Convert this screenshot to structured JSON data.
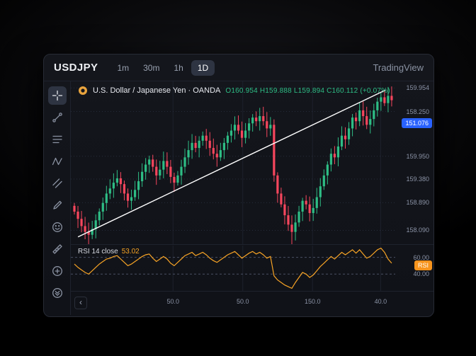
{
  "header": {
    "title": "USDJPY",
    "timeframes": [
      {
        "label": "1m",
        "active": false
      },
      {
        "label": "30m",
        "active": false
      },
      {
        "label": "1h",
        "active": false
      },
      {
        "label": "1D",
        "active": true
      }
    ],
    "brand": "TradingView"
  },
  "toolbar": {
    "tools": [
      "crosshair",
      "trend-line",
      "horizontal-lines",
      "xabcd-pattern",
      "parallel-channel",
      "brush",
      "emoji",
      "measure",
      "zoom-in",
      "more-tools"
    ],
    "active_tool": "crosshair"
  },
  "symbol": {
    "name": "U.S. Dollar / Japanese Yen · OANDA",
    "ohlc": "O160.954  H159.888  L159.894  C160.112  (+0.07%)"
  },
  "price_axis": {
    "labels": [
      {
        "text": "159.954",
        "f": 0.04
      },
      {
        "text": "158.250",
        "f": 0.185
      },
      {
        "text": "159.950",
        "f": 0.46
      },
      {
        "text": "159.380",
        "f": 0.6
      },
      {
        "text": "158.890",
        "f": 0.745
      },
      {
        "text": "158.090",
        "f": 0.915
      }
    ],
    "badge": {
      "text": "151.076",
      "f": 0.255
    }
  },
  "rsi_panel": {
    "title": "RSI 14 close",
    "value": "53.02",
    "levels": [
      {
        "text": "60.00",
        "value": 60
      },
      {
        "text": "40.00",
        "value": 40
      }
    ],
    "badge": "RSI",
    "badge_value": 50
  },
  "time_axis": {
    "chevron": "‹",
    "labels": [
      {
        "text": "50.0",
        "f": 0.315
      },
      {
        "text": "50.0",
        "f": 0.53
      },
      {
        "text": "150.0",
        "f": 0.745
      },
      {
        "text": "40.0",
        "f": 0.955
      }
    ]
  },
  "colors": {
    "up": "#2ebd85",
    "down": "#f6465d",
    "trendline": "#ffffff",
    "rsi_line": "#f7a325",
    "price_badge": "#2962ff",
    "rsi_badge": "#f7941d",
    "grid": "#1d212c",
    "grid_dotted": "#262c3a",
    "axis_text": "#8b93a6"
  },
  "chart_data": {
    "type": "candlestick",
    "symbol": "USDJPY",
    "interval": "1D",
    "price_range": [
      157.85,
      160.1
    ],
    "closes": [
      158.3,
      158.2,
      158.1,
      158.02,
      157.98,
      158.06,
      158.18,
      158.3,
      158.42,
      158.55,
      158.62,
      158.7,
      158.76,
      158.68,
      158.55,
      158.45,
      158.5,
      158.6,
      158.72,
      158.85,
      158.95,
      159.02,
      158.92,
      158.8,
      158.88,
      159.0,
      158.92,
      158.78,
      158.7,
      158.8,
      158.92,
      159.05,
      159.15,
      159.25,
      159.18,
      159.28,
      159.35,
      159.28,
      159.18,
      159.1,
      159.05,
      159.15,
      159.25,
      159.35,
      159.42,
      159.5,
      159.42,
      159.32,
      159.42,
      159.52,
      159.6,
      159.55,
      159.62,
      159.55,
      159.45,
      159.5,
      158.8,
      158.55,
      158.4,
      158.25,
      158.12,
      158.02,
      158.15,
      158.3,
      158.45,
      158.4,
      158.28,
      158.35,
      158.5,
      158.65,
      158.8,
      158.95,
      159.1,
      159.05,
      159.2,
      159.35,
      159.3,
      159.45,
      159.6,
      159.55,
      159.7,
      159.62,
      159.5,
      159.58,
      159.7,
      159.82,
      159.88,
      159.8,
      159.9,
      159.84
    ],
    "trendline": {
      "x1_frac": 0.022,
      "price1": 157.95,
      "x2_frac": 0.97,
      "price2": 159.98
    },
    "rsi": {
      "period": 14,
      "source": "close",
      "last": 53.02,
      "range": [
        20,
        74
      ],
      "levels": [
        60,
        40
      ],
      "values": [
        52,
        48,
        45,
        42,
        40,
        44,
        48,
        52,
        55,
        58,
        59,
        61,
        62,
        58,
        54,
        50,
        52,
        55,
        58,
        61,
        63,
        64,
        59,
        55,
        58,
        61,
        58,
        53,
        50,
        54,
        58,
        62,
        64,
        66,
        62,
        64,
        66,
        63,
        59,
        56,
        54,
        57,
        60,
        63,
        65,
        67,
        63,
        59,
        62,
        65,
        67,
        64,
        66,
        63,
        59,
        61,
        38,
        33,
        30,
        27,
        25,
        23,
        30,
        36,
        42,
        40,
        36,
        39,
        44,
        49,
        53,
        57,
        61,
        58,
        62,
        66,
        63,
        66,
        69,
        65,
        69,
        64,
        59,
        61,
        65,
        69,
        71,
        66,
        58,
        53
      ]
    }
  }
}
